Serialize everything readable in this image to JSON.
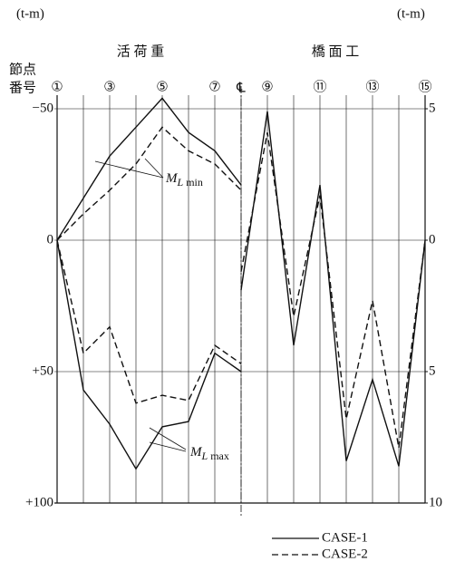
{
  "chart_data": {
    "type": "line",
    "unit_left": "(t-m)",
    "unit_right": "(t-m)",
    "section_left": "活 荷 重",
    "section_right": "橋 面 工",
    "node_label_1": "節点",
    "node_label_2": "番号",
    "centerline": "℄",
    "x_left": [
      1,
      2,
      3,
      4,
      5,
      6,
      7,
      8
    ],
    "x_right": [
      8,
      9,
      10,
      11,
      12,
      13,
      14,
      15
    ],
    "xlim": [
      1,
      15
    ],
    "xgrid": [
      1,
      2,
      3,
      4,
      5,
      6,
      7,
      8,
      9,
      10,
      11,
      12,
      13,
      14,
      15
    ],
    "xticks": [
      {
        "value": 1,
        "label": "①"
      },
      {
        "value": 3,
        "label": "③"
      },
      {
        "value": 5,
        "label": "⑤"
      },
      {
        "value": 7,
        "label": "⑦"
      },
      {
        "value": 9,
        "label": "⑨"
      },
      {
        "value": 11,
        "label": "⑪"
      },
      {
        "value": 13,
        "label": "⑬"
      },
      {
        "value": 15,
        "label": "⑮"
      }
    ],
    "centerline_x": 8,
    "ylim": [
      -50,
      100
    ],
    "yticks": [
      {
        "value": -50,
        "label": "−50"
      },
      0,
      {
        "value": 50,
        "label": "+50"
      },
      {
        "value": 100,
        "label": "+100"
      }
    ],
    "y2lim": [
      -5,
      10
    ],
    "y2ticks": [
      {
        "value": -5,
        "label": "5"
      },
      0,
      {
        "value": 5,
        "label": "5"
      },
      10
    ],
    "series": [
      {
        "name": "CASE-1",
        "color": "#111111",
        "dash": "none",
        "min_values": [
          0,
          -16,
          -32,
          -43,
          -54,
          -41,
          -34,
          -21
        ],
        "max_values": [
          0,
          57,
          70,
          87,
          71,
          69,
          43,
          50
        ],
        "values_y2": [
          1.9,
          -4.9,
          4.0,
          -2.1,
          8.4,
          5.3,
          8.6,
          0
        ]
      },
      {
        "name": "CASE-2",
        "color": "#111111",
        "dash": "7,4",
        "min_values": [
          0,
          -10,
          -19,
          -29,
          -43,
          -34,
          -29,
          -19
        ],
        "max_values": [
          0,
          43,
          33,
          62,
          59,
          61,
          40,
          47
        ],
        "values_y2": [
          1.2,
          -4.1,
          2.9,
          -1.7,
          6.8,
          2.3,
          7.9,
          0
        ]
      }
    ],
    "annotations": [
      {
        "main": "M",
        "sub": "L",
        "tail": "min"
      },
      {
        "main": "M",
        "sub": "L",
        "tail": "max"
      }
    ]
  }
}
